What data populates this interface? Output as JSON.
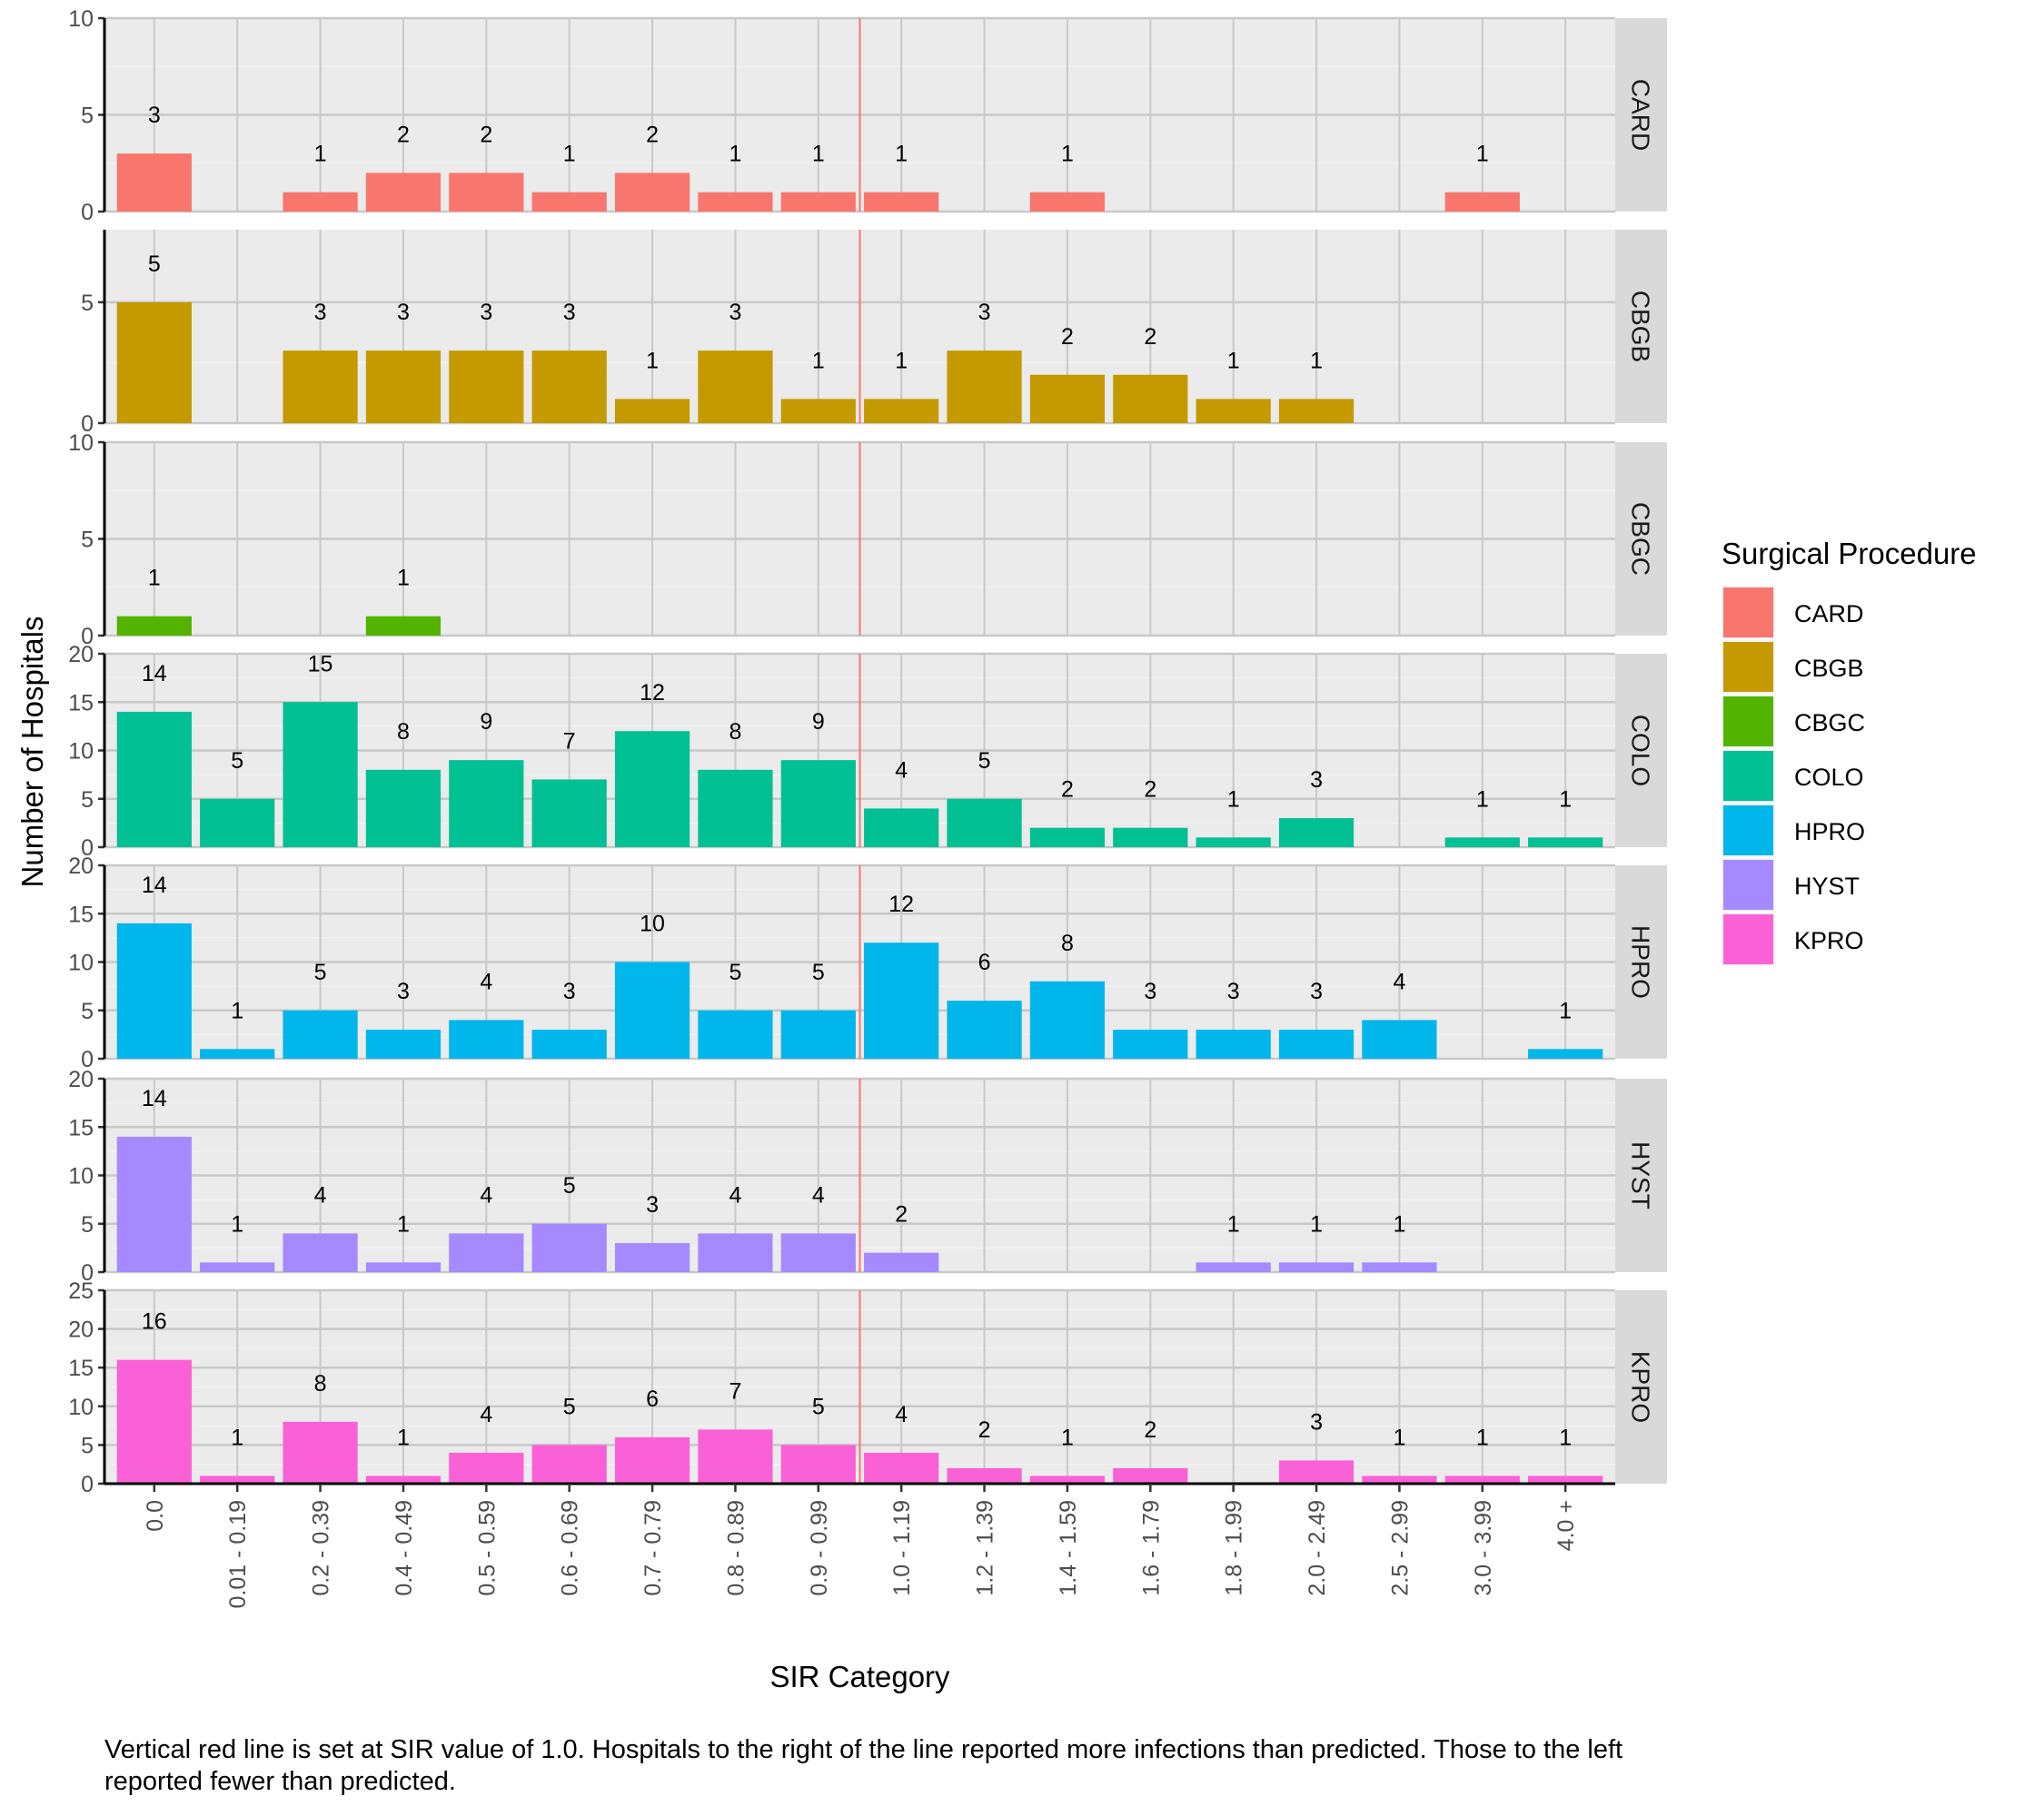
{
  "chart_data": {
    "type": "bar",
    "layout": "faceted-rows",
    "xlabel": "SIR Category",
    "ylabel": "Number of Hospitals",
    "categories": [
      "0.0",
      "0.01 - 0.19",
      "0.2 - 0.39",
      "0.4 - 0.49",
      "0.5 - 0.59",
      "0.6 - 0.69",
      "0.7 - 0.79",
      "0.8 - 0.89",
      "0.9 - 0.99",
      "1.0 - 1.19",
      "1.2 - 1.39",
      "1.4 - 1.59",
      "1.6 - 1.79",
      "1.8 - 1.99",
      "2.0 - 2.49",
      "2.5 - 2.99",
      "3.0 - 3.99",
      "4.0 +"
    ],
    "reference_line": {
      "position": "between 0.9 - 0.99 and 1.0 - 1.19",
      "sir_value": 1.0,
      "color": "#F8766D"
    },
    "legend": {
      "title": "Surgical Procedure",
      "placement": "right"
    },
    "grid": true,
    "series": [
      {
        "name": "CARD",
        "color": "#F8766D",
        "ylim": [
          0,
          10
        ],
        "yticks": [
          0,
          5,
          10
        ],
        "values": [
          3,
          null,
          1,
          2,
          2,
          1,
          2,
          1,
          1,
          1,
          null,
          1,
          null,
          null,
          null,
          null,
          1,
          null
        ]
      },
      {
        "name": "CBGB",
        "color": "#C49A00",
        "ylim": [
          0,
          8
        ],
        "yticks": [
          0,
          5
        ],
        "values": [
          5,
          null,
          3,
          3,
          3,
          3,
          1,
          3,
          1,
          1,
          3,
          2,
          2,
          1,
          1,
          null,
          null,
          null
        ]
      },
      {
        "name": "CBGC",
        "color": "#53B400",
        "ylim": [
          0,
          10
        ],
        "yticks": [
          0,
          5,
          10
        ],
        "values": [
          1,
          null,
          null,
          1,
          null,
          null,
          null,
          null,
          null,
          null,
          null,
          null,
          null,
          null,
          null,
          null,
          null,
          null
        ]
      },
      {
        "name": "COLO",
        "color": "#00C094",
        "ylim": [
          0,
          20
        ],
        "yticks": [
          0,
          5,
          10,
          15,
          20
        ],
        "values": [
          14,
          5,
          15,
          8,
          9,
          7,
          12,
          8,
          9,
          4,
          5,
          2,
          2,
          1,
          3,
          null,
          1,
          1
        ]
      },
      {
        "name": "HPRO",
        "color": "#00B6EB",
        "ylim": [
          0,
          20
        ],
        "yticks": [
          0,
          5,
          10,
          15,
          20
        ],
        "values": [
          14,
          1,
          5,
          3,
          4,
          3,
          10,
          5,
          5,
          12,
          6,
          8,
          3,
          3,
          3,
          4,
          null,
          1
        ]
      },
      {
        "name": "HYST",
        "color": "#A58AFF",
        "ylim": [
          0,
          20
        ],
        "yticks": [
          0,
          5,
          10,
          15,
          20
        ],
        "values": [
          14,
          1,
          4,
          1,
          4,
          5,
          3,
          4,
          4,
          2,
          null,
          null,
          null,
          1,
          1,
          1,
          null,
          null
        ]
      },
      {
        "name": "KPRO",
        "color": "#FB61D7",
        "ylim": [
          0,
          25
        ],
        "yticks": [
          0,
          5,
          10,
          15,
          20,
          25
        ],
        "values": [
          16,
          1,
          8,
          1,
          4,
          5,
          6,
          7,
          5,
          4,
          2,
          1,
          2,
          null,
          3,
          1,
          1,
          1
        ]
      }
    ]
  },
  "caption": "Vertical red line is set at SIR value of 1.0.  Hospitals to the right of the line reported more infections than predicted. Those to the left reported fewer than predicted."
}
